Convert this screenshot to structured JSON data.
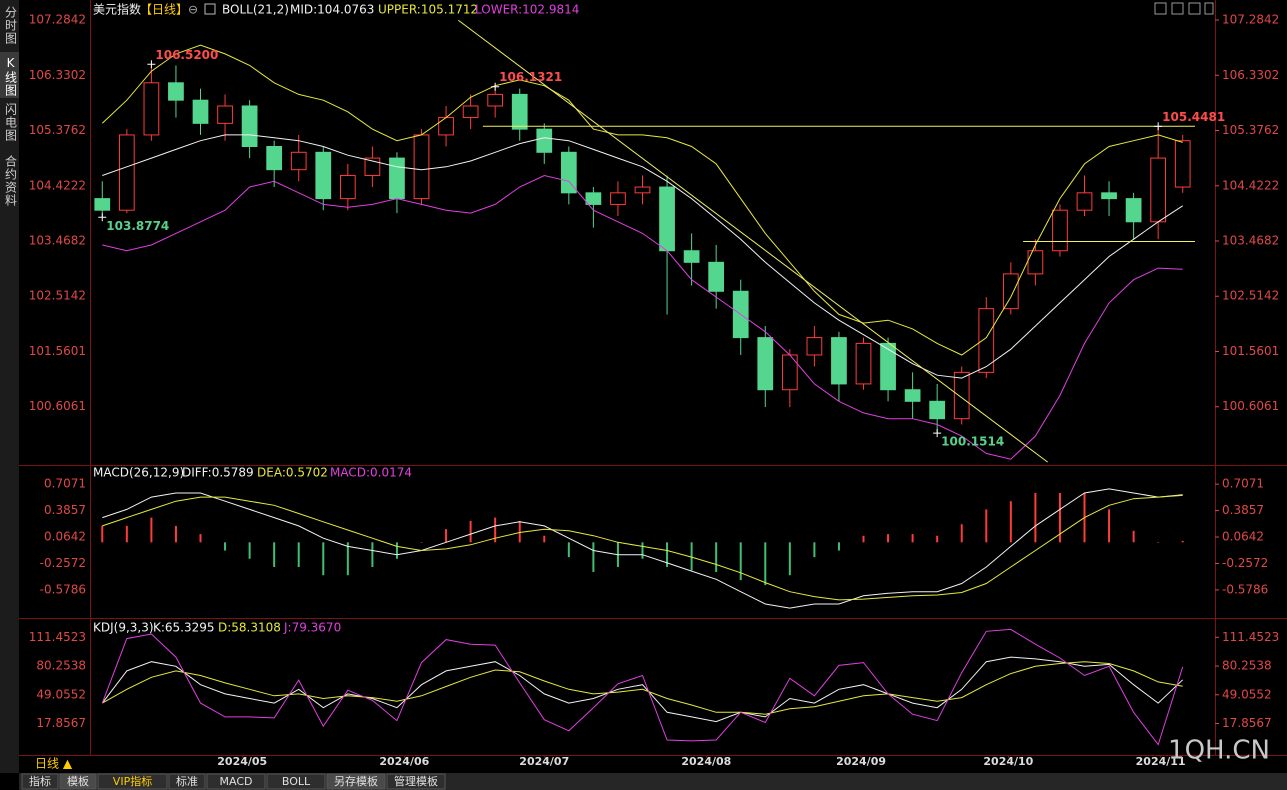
{
  "sidebar": [
    "分时图",
    "K线图",
    "闪电图",
    "合约资料"
  ],
  "chart_data": [
    {
      "type": "candlestick",
      "title": "美元指数",
      "period": "【日线】",
      "indicator": "BOLL(21,2)",
      "up_color": "#ff3b3b",
      "down_color": "#54d68f",
      "axis_color": "#e04848",
      "open": [
        104.2,
        104.0,
        105.3,
        106.2,
        105.9,
        105.5,
        105.8,
        105.1,
        104.7,
        105.0,
        104.2,
        104.6,
        104.9,
        104.2,
        105.3,
        105.6,
        105.8,
        106.0,
        105.4,
        105.0,
        104.3,
        104.1,
        104.3,
        104.4,
        103.3,
        103.1,
        102.6,
        101.8,
        100.9,
        101.5,
        101.8,
        101.0,
        101.7,
        100.9,
        100.7,
        100.4,
        101.2,
        102.3,
        102.9,
        103.3,
        104.0,
        104.3,
        104.2,
        103.8,
        104.4
      ],
      "high": [
        104.5,
        105.4,
        106.52,
        106.5,
        106.1,
        106.0,
        105.9,
        105.2,
        105.3,
        105.1,
        104.8,
        105.1,
        105.0,
        105.4,
        105.8,
        106.0,
        106.1321,
        106.1,
        105.5,
        105.1,
        104.4,
        104.5,
        104.6,
        104.6,
        103.6,
        103.4,
        102.8,
        102.0,
        101.6,
        102.0,
        101.9,
        101.8,
        101.8,
        101.2,
        101.0,
        101.3,
        102.5,
        103.1,
        103.5,
        104.1,
        104.6,
        104.5,
        104.3,
        105.4481,
        105.3
      ],
      "low": [
        103.8774,
        103.95,
        105.2,
        105.6,
        105.3,
        105.2,
        104.9,
        104.4,
        104.5,
        104.0,
        104.0,
        104.4,
        103.95,
        104.1,
        105.1,
        105.4,
        105.6,
        105.2,
        104.8,
        104.1,
        103.7,
        103.9,
        104.1,
        102.2,
        102.7,
        102.3,
        101.5,
        100.6,
        100.6,
        101.3,
        100.7,
        100.9,
        100.7,
        100.4,
        100.1514,
        100.3,
        101.1,
        102.2,
        102.7,
        103.2,
        103.9,
        103.9,
        103.5,
        103.5,
        104.3
      ],
      "close": [
        104.0,
        105.3,
        106.2,
        105.9,
        105.5,
        105.8,
        105.1,
        104.7,
        105.0,
        104.2,
        104.6,
        104.9,
        104.2,
        105.3,
        105.6,
        105.8,
        106.0,
        105.4,
        105.0,
        104.3,
        104.1,
        104.3,
        104.4,
        103.3,
        103.1,
        102.6,
        101.8,
        100.9,
        101.5,
        101.8,
        101.0,
        101.7,
        100.9,
        100.7,
        100.4,
        101.2,
        102.3,
        102.9,
        103.3,
        104.0,
        104.3,
        104.2,
        103.8,
        104.9,
        105.2
      ],
      "series": [
        {
          "name": "MID:104.0763",
          "color": "#f2f2f2",
          "values": [
            104.6,
            104.75,
            104.9,
            105.05,
            105.2,
            105.3,
            105.3,
            105.25,
            105.2,
            105.1,
            104.95,
            104.85,
            104.75,
            104.7,
            104.75,
            104.85,
            105.0,
            105.15,
            105.25,
            105.2,
            105.05,
            104.9,
            104.75,
            104.5,
            104.2,
            103.85,
            103.5,
            103.1,
            102.75,
            102.4,
            102.1,
            101.85,
            101.6,
            101.35,
            101.15,
            101.1,
            101.3,
            101.6,
            102.0,
            102.4,
            102.8,
            103.2,
            103.5,
            103.8,
            104.0763
          ]
        },
        {
          "name": "UPPER:105.1712",
          "color": "#e8e83a",
          "values": [
            105.5,
            105.9,
            106.4,
            106.7,
            106.85,
            106.7,
            106.5,
            106.2,
            106.0,
            105.9,
            105.7,
            105.4,
            105.2,
            105.3,
            105.6,
            105.95,
            106.15,
            106.25,
            106.15,
            105.9,
            105.4,
            105.3,
            105.3,
            105.25,
            105.1,
            104.8,
            104.2,
            103.6,
            103.1,
            102.6,
            102.2,
            102.05,
            102.1,
            101.95,
            101.7,
            101.5,
            101.8,
            102.5,
            103.4,
            104.2,
            104.8,
            105.1,
            105.2,
            105.3,
            105.1712
          ]
        },
        {
          "name": "LOWER:102.9814",
          "color": "#e040e0",
          "values": [
            103.4,
            103.3,
            103.4,
            103.6,
            103.8,
            104.0,
            104.4,
            104.5,
            104.3,
            104.1,
            104.05,
            104.1,
            104.2,
            104.1,
            104.0,
            103.95,
            104.1,
            104.4,
            104.6,
            104.5,
            104.0,
            103.8,
            103.6,
            103.3,
            102.8,
            102.5,
            102.2,
            101.9,
            101.5,
            101.0,
            100.7,
            100.5,
            100.4,
            100.4,
            100.3,
            100.1,
            99.8,
            99.7,
            100.1,
            100.8,
            101.7,
            102.4,
            102.8,
            103.0,
            102.9814
          ]
        }
      ],
      "annotations": [
        {
          "label": "106.5200",
          "x": 2,
          "y": 106.52,
          "color": "#ff4d4d"
        },
        {
          "label": "106.1321",
          "x": 16,
          "y": 106.1321,
          "color": "#ff4d4d"
        },
        {
          "label": "105.4481",
          "x": 43,
          "y": 105.4481,
          "color": "#ff4d4d"
        },
        {
          "label": "103.8774",
          "x": 0,
          "y": 103.8774,
          "color": "#5ad18a"
        },
        {
          "label": "100.1514",
          "x": 34,
          "y": 100.1514,
          "color": "#5ad18a"
        }
      ],
      "trendlines": [
        {
          "x": [
            16,
            45
          ],
          "y": [
            105.45,
            105.45
          ],
          "color": "#f0f060"
        },
        {
          "x": [
            38,
            45
          ],
          "y": [
            103.46,
            103.46
          ],
          "color": "#f0f060"
        },
        {
          "x": [
            15,
            39
          ],
          "y": [
            107.28,
            99.65
          ],
          "color": "#f0f060"
        }
      ],
      "xticks": [
        {
          "value": 5.7,
          "label": "2024/05"
        },
        {
          "value": 12.3,
          "label": "2024/06"
        },
        {
          "value": 18.0,
          "label": "2024/07"
        },
        {
          "value": 24.6,
          "label": "2024/08"
        },
        {
          "value": 30.9,
          "label": "2024/09"
        },
        {
          "value": 36.9,
          "label": "2024/10"
        },
        {
          "value": 43.1,
          "label": "2024/11"
        }
      ],
      "ylim": [
        99.6,
        107.63
      ],
      "yticks": [
        107.2842,
        106.3302,
        105.3762,
        104.4222,
        103.4682,
        102.5142,
        101.5601,
        100.6061
      ]
    },
    {
      "type": "macd",
      "title": "MACD(26,12,9)",
      "axis_color": "#e04848",
      "up_color": "#ff3b3b",
      "down_color": "#3fc070",
      "series": [
        {
          "name": "DIFF:0.5789",
          "color": "#f2f2f2",
          "values": [
            0.3,
            0.4,
            0.55,
            0.6,
            0.6,
            0.5,
            0.4,
            0.3,
            0.2,
            0.05,
            -0.05,
            -0.1,
            -0.15,
            -0.1,
            0.0,
            0.1,
            0.2,
            0.25,
            0.2,
            0.05,
            -0.1,
            -0.15,
            -0.15,
            -0.25,
            -0.35,
            -0.45,
            -0.6,
            -0.75,
            -0.8,
            -0.75,
            -0.75,
            -0.65,
            -0.62,
            -0.6,
            -0.6,
            -0.5,
            -0.3,
            -0.05,
            0.2,
            0.4,
            0.6,
            0.65,
            0.6,
            0.55,
            0.5789
          ]
        },
        {
          "name": "DEA:0.5702",
          "color": "#e8e83a",
          "values": [
            0.2,
            0.3,
            0.4,
            0.5,
            0.55,
            0.55,
            0.5,
            0.45,
            0.35,
            0.25,
            0.15,
            0.05,
            -0.05,
            -0.1,
            -0.08,
            -0.03,
            0.05,
            0.12,
            0.16,
            0.14,
            0.08,
            0.0,
            -0.05,
            -0.1,
            -0.18,
            -0.27,
            -0.37,
            -0.49,
            -0.6,
            -0.66,
            -0.7,
            -0.69,
            -0.67,
            -0.65,
            -0.64,
            -0.61,
            -0.5,
            -0.3,
            -0.1,
            0.1,
            0.3,
            0.45,
            0.53,
            0.55,
            0.5702
          ]
        }
      ],
      "histogram": {
        "name": "MACD:0.0174",
        "color": "#e040e0",
        "values": [
          0.2,
          0.2,
          0.3,
          0.2,
          0.1,
          -0.1,
          -0.2,
          -0.3,
          -0.3,
          -0.4,
          -0.4,
          -0.3,
          -0.2,
          0.0,
          0.16,
          0.26,
          0.3,
          0.26,
          0.08,
          -0.18,
          -0.36,
          -0.3,
          -0.2,
          -0.3,
          -0.34,
          -0.36,
          -0.46,
          -0.52,
          -0.4,
          -0.18,
          -0.1,
          0.08,
          0.1,
          0.1,
          0.08,
          0.22,
          0.4,
          0.5,
          0.6,
          0.6,
          0.6,
          0.4,
          0.14,
          0.0,
          0.0174
        ]
      },
      "ylim": [
        -0.92,
        0.94
      ],
      "yticks": [
        0.7071,
        0.3857,
        0.0642,
        -0.2572,
        -0.5786
      ]
    },
    {
      "type": "line",
      "title": "KDJ(9,3,3)",
      "axis_color": "#e04848",
      "series": [
        {
          "name": "K:65.3295",
          "color": "#f2f2f2",
          "values": [
            40,
            75,
            85,
            80,
            60,
            50,
            45,
            40,
            55,
            35,
            50,
            45,
            35,
            60,
            75,
            80,
            85,
            70,
            50,
            40,
            45,
            55,
            60,
            30,
            25,
            20,
            30,
            25,
            45,
            40,
            55,
            60,
            50,
            40,
            35,
            55,
            85,
            90,
            88,
            85,
            80,
            82,
            60,
            40,
            65.3295
          ]
        },
        {
          "name": "D:58.3108",
          "color": "#e8e83a",
          "values": [
            40,
            55,
            68,
            75,
            70,
            62,
            55,
            48,
            50,
            45,
            48,
            46,
            42,
            48,
            58,
            68,
            76,
            74,
            64,
            55,
            50,
            52,
            55,
            45,
            38,
            30,
            30,
            28,
            34,
            36,
            42,
            48,
            50,
            46,
            42,
            46,
            60,
            72,
            80,
            83,
            85,
            83,
            75,
            63,
            58.3108
          ]
        },
        {
          "name": "J:79.3670",
          "color": "#e040e0",
          "values": [
            40,
            110,
            115,
            90,
            40,
            25,
            25,
            24,
            65,
            15,
            54,
            43,
            21,
            84,
            109,
            104,
            103,
            62,
            22,
            10,
            35,
            61,
            70,
            0,
            -1,
            0,
            30,
            19,
            67,
            48,
            81,
            84,
            50,
            28,
            21,
            73,
            118,
            120,
            104,
            89,
            70,
            80,
            30,
            -5,
            79.367
          ]
        }
      ],
      "ylim": [
        -16.3,
        132.4
      ],
      "yticks": [
        111.4523,
        80.2538,
        49.0552,
        17.8567
      ]
    }
  ],
  "footer": {
    "period": "日线 ▲",
    "tabs": [
      "指标",
      "模板",
      "VIP指标",
      "标准",
      "MACD",
      "BOLL",
      "另存模板",
      "管理模板"
    ],
    "watermark": "1QH.CN"
  }
}
